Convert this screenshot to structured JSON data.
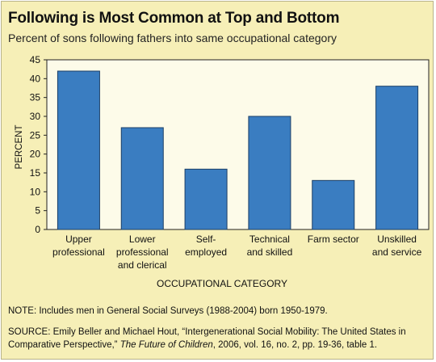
{
  "chart_data": {
    "type": "bar",
    "title": "Following is Most Common at Top and Bottom",
    "subtitle": "Percent of sons following fathers into same occupational category",
    "xlabel": "OCCUPATIONAL CATEGORY",
    "ylabel": "PERCENT",
    "ylim": [
      0,
      45
    ],
    "yticks": [
      0,
      5,
      10,
      15,
      20,
      25,
      30,
      35,
      40,
      45
    ],
    "grid": false,
    "categories": [
      [
        "Upper",
        "professional"
      ],
      [
        "Lower",
        "professional",
        "and clerical"
      ],
      [
        "Self-",
        "employed"
      ],
      [
        "Technical",
        "and skilled"
      ],
      [
        "Farm sector"
      ],
      [
        "Unskilled",
        "and service"
      ]
    ],
    "values": [
      42,
      27,
      16,
      30,
      13,
      38
    ],
    "bar_color": "#3a7dc1",
    "plot_background": "#fdfbe9",
    "panel_background": "#f6efb7"
  },
  "footer": {
    "note_label": "NOTE:",
    "note_text": "Includes men in General Social Surveys (1988-2004) born 1950-1979.",
    "source_label": "SOURCE:",
    "source_text_1": "Emily Beller and Michael Hout, “Intergenerational Social Mobility: The United States in Comparative Perspective,”",
    "source_journal": "The Future of Children",
    "source_text_2": ", 2006, vol. 16, no. 2, pp. 19-36, table 1."
  }
}
